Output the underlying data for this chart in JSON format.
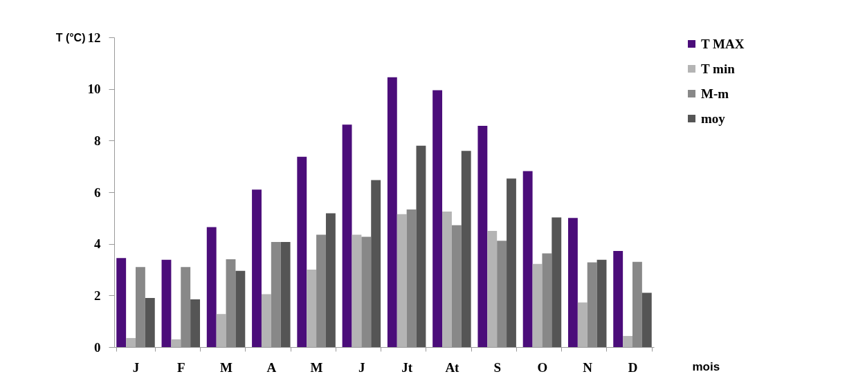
{
  "chart_data": {
    "type": "bar",
    "categories": [
      "J",
      "F",
      "M",
      "A",
      "M",
      "J",
      "Jt",
      "At",
      "S",
      "O",
      "N",
      "D"
    ],
    "xlabel": "mois",
    "ylabel": "T (°C)",
    "series": [
      {
        "name": "T MAX",
        "color": "#4b0d7a",
        "values": [
          3.45,
          3.38,
          4.65,
          6.1,
          7.37,
          8.62,
          10.45,
          9.95,
          8.57,
          6.82,
          5.0,
          3.72
        ]
      },
      {
        "name": "T min",
        "color": "#b4b4b4",
        "values": [
          0.35,
          0.3,
          1.28,
          2.05,
          3.0,
          4.35,
          5.15,
          5.25,
          4.5,
          3.22,
          1.73,
          0.43
        ]
      },
      {
        "name": "M-m",
        "color": "#888888",
        "values": [
          3.1,
          3.1,
          3.4,
          4.07,
          4.35,
          4.27,
          5.33,
          4.72,
          4.12,
          3.63,
          3.28,
          3.3
        ]
      },
      {
        "name": "moy",
        "color": "#555555",
        "values": [
          1.9,
          1.85,
          2.95,
          4.07,
          5.18,
          6.47,
          7.8,
          7.6,
          6.53,
          5.02,
          3.38,
          2.1
        ]
      }
    ],
    "ylim": [
      0,
      12
    ],
    "yticks": [
      0,
      2,
      4,
      6,
      8,
      10,
      12
    ],
    "grid": false,
    "legend": "top right"
  }
}
